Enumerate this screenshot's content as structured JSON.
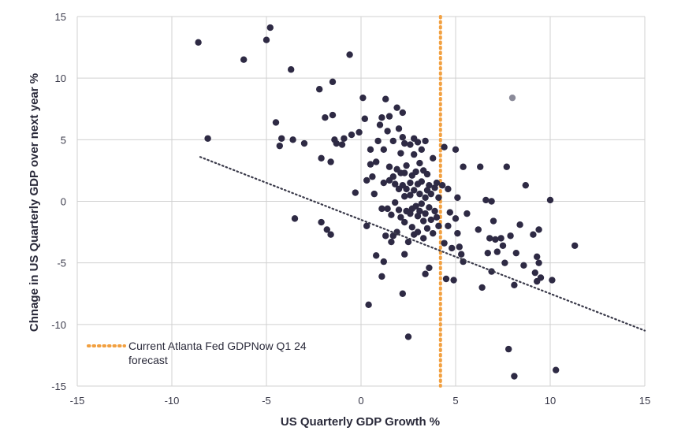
{
  "chart_data": {
    "type": "scatter",
    "title": "",
    "xlabel": "US Quarterly GDP Growth %",
    "ylabel": "Chnage in US Quarterly GDP over next year %",
    "xlim": [
      -15,
      15
    ],
    "ylim": [
      -15,
      15
    ],
    "xticks": [
      "-15",
      "-10",
      "-5",
      "0",
      "5",
      "10",
      "15"
    ],
    "yticks": [
      "15",
      "10",
      "5",
      "0",
      "-5",
      "-10",
      "-15"
    ],
    "grid": "on",
    "legend": {
      "position": "bottom-left",
      "line1": "Current Atlanta Fed GDPNow Q1 24",
      "line2": "forecast"
    },
    "colors": {
      "points": "#2e2a44",
      "highlight": "#8a8a99",
      "forecast_line": "#f2a040",
      "trend": "#3a3a4a",
      "grid": "#d0d0d0"
    },
    "forecast_x": 4.2,
    "trendline": {
      "slope": -0.6,
      "intercept": -1.5,
      "x_start": -8.5,
      "x_end": 15
    },
    "highlight_point": [
      8.0,
      8.4
    ],
    "points": [
      [
        -8.6,
        12.9
      ],
      [
        -8.1,
        5.1
      ],
      [
        -6.2,
        11.5
      ],
      [
        -5.0,
        13.1
      ],
      [
        -4.8,
        14.1
      ],
      [
        -4.5,
        6.4
      ],
      [
        -4.3,
        4.5
      ],
      [
        -4.2,
        5.1
      ],
      [
        -3.7,
        10.7
      ],
      [
        -3.6,
        5.0
      ],
      [
        -3.5,
        -1.4
      ],
      [
        -3.0,
        4.7
      ],
      [
        -2.2,
        9.1
      ],
      [
        -2.1,
        3.5
      ],
      [
        -2.1,
        -1.7
      ],
      [
        -1.9,
        6.8
      ],
      [
        -1.8,
        -2.3
      ],
      [
        -1.6,
        3.2
      ],
      [
        -1.6,
        -2.7
      ],
      [
        -1.5,
        9.7
      ],
      [
        -1.5,
        7.0
      ],
      [
        -1.4,
        5.0
      ],
      [
        -1.3,
        4.7
      ],
      [
        -1.0,
        4.6
      ],
      [
        -0.9,
        5.1
      ],
      [
        -0.6,
        11.9
      ],
      [
        -0.5,
        5.4
      ],
      [
        -0.3,
        0.7
      ],
      [
        -0.1,
        5.6
      ],
      [
        0.1,
        8.4
      ],
      [
        0.2,
        6.7
      ],
      [
        0.3,
        1.7
      ],
      [
        0.3,
        -2.0
      ],
      [
        0.4,
        -8.4
      ],
      [
        0.5,
        4.2
      ],
      [
        0.5,
        3.0
      ],
      [
        0.6,
        2.0
      ],
      [
        0.7,
        0.6
      ],
      [
        0.8,
        3.2
      ],
      [
        0.8,
        -4.4
      ],
      [
        0.9,
        4.9
      ],
      [
        1.0,
        6.2
      ],
      [
        1.1,
        6.8
      ],
      [
        1.1,
        -0.6
      ],
      [
        1.1,
        -6.1
      ],
      [
        1.2,
        4.2
      ],
      [
        1.2,
        1.5
      ],
      [
        1.2,
        -4.9
      ],
      [
        1.3,
        8.3
      ],
      [
        1.3,
        -2.8
      ],
      [
        1.4,
        5.7
      ],
      [
        1.4,
        -0.6
      ],
      [
        1.5,
        6.9
      ],
      [
        1.5,
        2.8
      ],
      [
        1.5,
        1.7
      ],
      [
        1.6,
        -1.1
      ],
      [
        1.6,
        -3.3
      ],
      [
        1.7,
        4.9
      ],
      [
        1.7,
        2.0
      ],
      [
        1.7,
        -2.8
      ],
      [
        1.8,
        1.4
      ],
      [
        1.8,
        -0.1
      ],
      [
        1.9,
        7.6
      ],
      [
        1.9,
        2.6
      ],
      [
        1.9,
        -2.5
      ],
      [
        2.0,
        5.9
      ],
      [
        2.0,
        1.0
      ],
      [
        2.0,
        -0.7
      ],
      [
        2.1,
        3.9
      ],
      [
        2.1,
        2.3
      ],
      [
        2.1,
        -1.3
      ],
      [
        2.2,
        7.2
      ],
      [
        2.2,
        5.2
      ],
      [
        2.2,
        1.3
      ],
      [
        2.2,
        -7.5
      ],
      [
        2.3,
        4.7
      ],
      [
        2.3,
        2.3
      ],
      [
        2.3,
        0.4
      ],
      [
        2.3,
        -1.7
      ],
      [
        2.3,
        -4.3
      ],
      [
        2.4,
        2.9
      ],
      [
        2.4,
        1.0
      ],
      [
        2.4,
        -0.8
      ],
      [
        2.5,
        -3.3
      ],
      [
        2.5,
        -11.0
      ],
      [
        2.6,
        4.6
      ],
      [
        2.6,
        1.5
      ],
      [
        2.6,
        0.5
      ],
      [
        2.6,
        -1.0
      ],
      [
        2.7,
        2.1
      ],
      [
        2.7,
        -0.6
      ],
      [
        2.7,
        -2.1
      ],
      [
        2.8,
        5.1
      ],
      [
        2.8,
        3.8
      ],
      [
        2.8,
        0.9
      ],
      [
        2.8,
        -2.7
      ],
      [
        2.9,
        2.4
      ],
      [
        2.9,
        -0.4
      ],
      [
        3.0,
        4.8
      ],
      [
        3.0,
        1.4
      ],
      [
        3.0,
        -1.2
      ],
      [
        3.0,
        -2.5
      ],
      [
        3.1,
        3.1
      ],
      [
        3.1,
        0.6
      ],
      [
        3.1,
        -0.8
      ],
      [
        3.2,
        4.2
      ],
      [
        3.2,
        1.6
      ],
      [
        3.2,
        -0.2
      ],
      [
        3.3,
        2.5
      ],
      [
        3.3,
        -1.6
      ],
      [
        3.3,
        -3.0
      ],
      [
        3.4,
        4.9
      ],
      [
        3.4,
        0.3
      ],
      [
        3.4,
        -1.0
      ],
      [
        3.4,
        -5.9
      ],
      [
        3.5,
        2.2
      ],
      [
        3.5,
        0.9
      ],
      [
        3.5,
        -2.2
      ],
      [
        3.6,
        1.3
      ],
      [
        3.6,
        -0.5
      ],
      [
        3.6,
        -5.4
      ],
      [
        3.7,
        0.6
      ],
      [
        3.7,
        -1.5
      ],
      [
        3.8,
        3.5
      ],
      [
        3.8,
        -2.6
      ],
      [
        3.9,
        1.1
      ],
      [
        3.9,
        -0.8
      ],
      [
        4.0,
        1.5
      ],
      [
        4.0,
        -1.3
      ],
      [
        4.1,
        0.3
      ],
      [
        4.1,
        -2.0
      ],
      [
        4.3,
        1.3
      ],
      [
        4.4,
        4.4
      ],
      [
        4.4,
        -3.4
      ],
      [
        4.5,
        -6.3
      ],
      [
        4.6,
        1.0
      ],
      [
        4.6,
        -2.0
      ],
      [
        4.7,
        -0.9
      ],
      [
        4.8,
        -3.8
      ],
      [
        4.9,
        -6.4
      ],
      [
        5.0,
        4.2
      ],
      [
        5.0,
        -1.4
      ],
      [
        5.1,
        0.3
      ],
      [
        5.1,
        -2.6
      ],
      [
        5.2,
        -3.7
      ],
      [
        5.3,
        -4.3
      ],
      [
        5.4,
        2.8
      ],
      [
        5.4,
        -4.9
      ],
      [
        5.6,
        -1.0
      ],
      [
        6.2,
        -2.3
      ],
      [
        6.3,
        2.8
      ],
      [
        6.4,
        -7.0
      ],
      [
        6.6,
        0.1
      ],
      [
        6.7,
        -4.2
      ],
      [
        6.8,
        -3.0
      ],
      [
        6.9,
        -5.7
      ],
      [
        6.9,
        0.0
      ],
      [
        7.0,
        -1.6
      ],
      [
        7.1,
        -3.1
      ],
      [
        7.2,
        -4.1
      ],
      [
        7.4,
        -3.0
      ],
      [
        7.5,
        -3.6
      ],
      [
        7.6,
        -5.0
      ],
      [
        7.7,
        2.8
      ],
      [
        7.8,
        -12.0
      ],
      [
        7.9,
        -2.8
      ],
      [
        8.1,
        -14.2
      ],
      [
        8.1,
        -6.8
      ],
      [
        8.2,
        -4.2
      ],
      [
        8.4,
        -1.9
      ],
      [
        8.6,
        -5.2
      ],
      [
        8.7,
        1.3
      ],
      [
        9.1,
        -2.7
      ],
      [
        9.2,
        -5.8
      ],
      [
        9.3,
        -4.5
      ],
      [
        9.3,
        -6.5
      ],
      [
        9.4,
        -2.3
      ],
      [
        9.4,
        -5.0
      ],
      [
        9.5,
        -6.2
      ],
      [
        10.0,
        0.1
      ],
      [
        10.1,
        -6.4
      ],
      [
        10.3,
        -13.7
      ],
      [
        11.3,
        -3.6
      ]
    ]
  }
}
